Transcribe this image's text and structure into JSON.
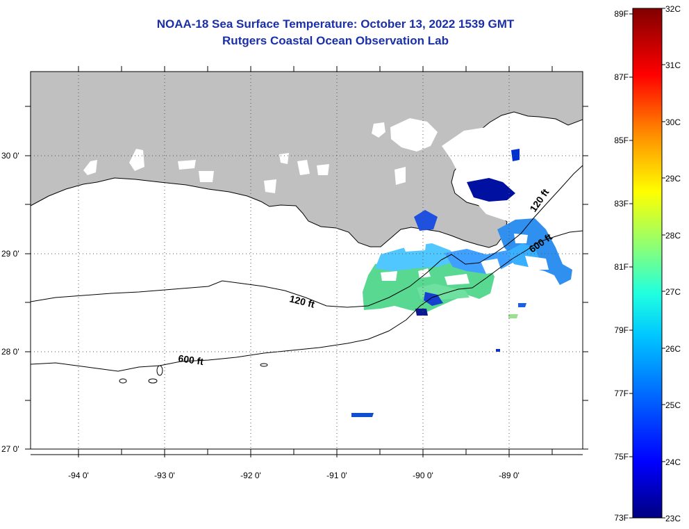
{
  "header": {
    "title": "NOAA-18 Sea Surface Temperature:  October 13, 2022 1539 GMT",
    "subtitle": "Rutgers Coastal Ocean Observation Lab"
  },
  "map": {
    "lat_labels": [
      "30 0'",
      "29 0'",
      "28 0'",
      "27 0'"
    ],
    "lon_labels": [
      "-94 0'",
      "-93 0'",
      "-92 0'",
      "-91 0'",
      "-90 0'",
      "-89 0'"
    ],
    "isobaths": [
      {
        "label": "120 ft",
        "depth_ft": 120
      },
      {
        "label": "600 ft",
        "depth_ft": 600
      },
      {
        "label": "120 ft",
        "depth_ft": 120
      },
      {
        "label": "600 ft",
        "depth_ft": 600
      }
    ],
    "colors": {
      "land": "#c0c0c0",
      "contour": "#000000",
      "grid": "#555555"
    }
  },
  "colorbar": {
    "fahrenheit_labels": [
      "89F",
      "87F",
      "85F",
      "83F",
      "81F",
      "79F",
      "77F",
      "75F",
      "73F"
    ],
    "celsius_labels": [
      "32C",
      "31C",
      "30C",
      "29C",
      "28C",
      "27C",
      "26C",
      "25C",
      "24C",
      "23C"
    ],
    "range_c": [
      23,
      32
    ],
    "colormap": "jet"
  }
}
